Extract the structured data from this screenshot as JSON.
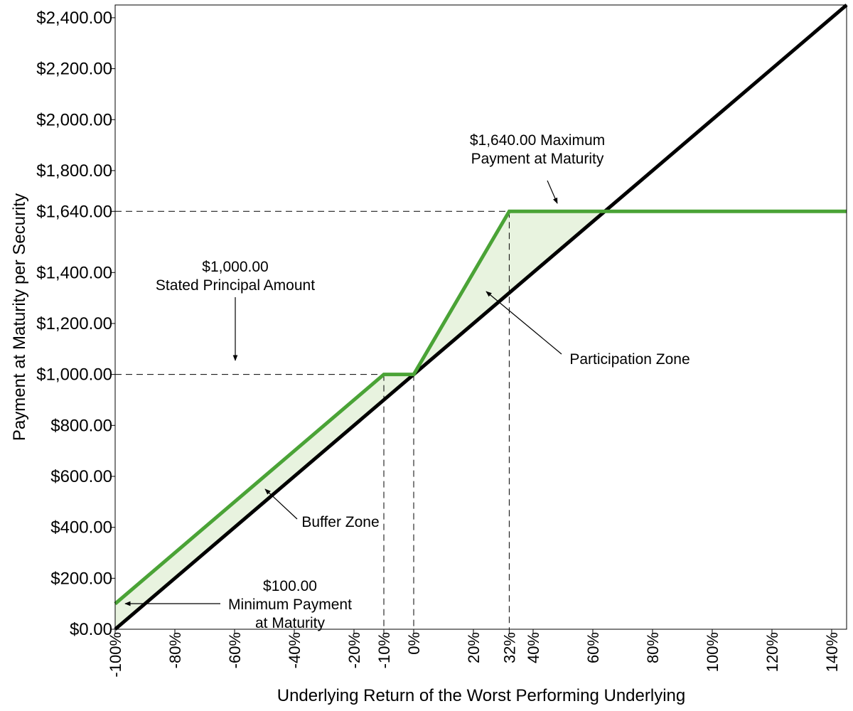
{
  "chart_data": {
    "type": "line",
    "title": "",
    "xlabel": "Underlying Return of the Worst Performing Underlying",
    "ylabel": "Payment at Maturity per Security",
    "xlim": [
      -100,
      145
    ],
    "ylim": [
      0,
      2450
    ],
    "grid": false,
    "x_ticks": [
      -100,
      -80,
      -60,
      -40,
      -20,
      -10,
      0,
      20,
      32,
      40,
      60,
      80,
      100,
      120,
      140
    ],
    "x_tick_labels": [
      "-100%",
      "-80%",
      "-60%",
      "-40%",
      "-20%",
      "-10%",
      "0%",
      "20%",
      "32%",
      "40%",
      "60%",
      "80%",
      "100%",
      "120%",
      "140%"
    ],
    "y_ticks": [
      0,
      200,
      400,
      600,
      800,
      1000,
      1200,
      1400,
      1640,
      1800,
      2000,
      2200,
      2400
    ],
    "y_tick_labels": [
      "$0.00",
      "$200.00",
      "$400.00",
      "$600.00",
      "$800.00",
      "$1,000.00",
      "$1,200.00",
      "$1,400.00",
      "$1,640.00",
      "$1,800.00",
      "$2,000.00",
      "$2,200.00",
      "$2,400.00"
    ],
    "series": [
      {
        "x": [
          -100,
          145
        ],
        "y": [
          0,
          2450
        ],
        "color": "#000000"
      },
      {
        "x": [
          -100,
          -10,
          0,
          32,
          145
        ],
        "y": [
          100,
          1000,
          1000,
          1640,
          1640
        ],
        "color": "#4aa336"
      }
    ],
    "shaded_fill": "#e8f3df",
    "reference_lines": {
      "horizontal": [
        1000,
        1640
      ],
      "vertical": [
        -10,
        0,
        32
      ]
    },
    "annotations": [
      {
        "lines": [
          "$1,640.00 Maximum",
          "Payment at Maturity"
        ]
      },
      {
        "lines": [
          "$1,000.00",
          "Stated Principal Amount"
        ]
      },
      {
        "lines": [
          "Participation Zone"
        ]
      },
      {
        "lines": [
          "Buffer Zone"
        ]
      },
      {
        "lines": [
          "$100.00",
          "Minimum Payment",
          "at Maturity"
        ]
      }
    ]
  }
}
